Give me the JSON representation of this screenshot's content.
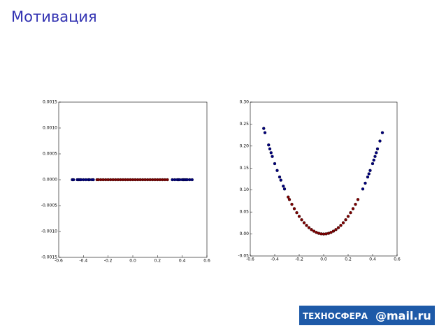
{
  "slide_title": "Мотивация",
  "logo": {
    "brand": "ТЕХНОСФЕРА",
    "partner": "@mail.ru"
  },
  "chart_data": [
    {
      "type": "scatter",
      "xlim": [
        -0.6,
        0.6
      ],
      "ylim": [
        -0.0015,
        0.0015
      ],
      "xticks": [
        {
          "value": -0.6,
          "label": "-0.6"
        },
        {
          "value": -0.4,
          "label": "-0.4"
        },
        {
          "value": -0.2,
          "label": "-0.2"
        },
        {
          "value": 0,
          "label": "0.0"
        },
        {
          "value": 0.2,
          "label": "0.2"
        },
        {
          "value": 0.4,
          "label": "0.4"
        },
        {
          "value": 0.6,
          "label": "0.6"
        }
      ],
      "yticks": [
        {
          "value": -0.0015,
          "label": "-0.0015"
        },
        {
          "value": -0.001,
          "label": "-0.0010"
        },
        {
          "value": -0.0005,
          "label": "-0.0005"
        },
        {
          "value": 0,
          "label": "0.0000"
        },
        {
          "value": 0.0005,
          "label": "0.0005"
        },
        {
          "value": 0.001,
          "label": "0.0010"
        },
        {
          "value": 0.0015,
          "label": "0.0015"
        }
      ],
      "series": [
        {
          "color": "#00007f",
          "x": [
            -0.49,
            -0.48,
            -0.45,
            -0.44,
            -0.43,
            -0.42,
            -0.4,
            -0.38,
            -0.36,
            -0.35,
            -0.33,
            -0.32,
            0.32,
            0.34,
            0.36,
            0.37,
            0.38,
            0.4,
            0.41,
            0.42,
            0.43,
            0.44,
            0.46,
            0.48
          ],
          "values": [
            0,
            0,
            0,
            0,
            0,
            0,
            0,
            0,
            0,
            0,
            0,
            0,
            0,
            0,
            0,
            0,
            0,
            0,
            0,
            0,
            0,
            0,
            0,
            0
          ]
        },
        {
          "color": "#7f0000",
          "x": [
            -0.29,
            -0.28,
            -0.26,
            -0.24,
            -0.22,
            -0.2,
            -0.18,
            -0.16,
            -0.14,
            -0.12,
            -0.1,
            -0.08,
            -0.06,
            -0.04,
            -0.02,
            0.0,
            0.02,
            0.04,
            0.06,
            0.08,
            0.1,
            0.12,
            0.14,
            0.16,
            0.18,
            0.2,
            0.22,
            0.24,
            0.26,
            0.28
          ],
          "values": [
            0,
            0,
            0,
            0,
            0,
            0,
            0,
            0,
            0,
            0,
            0,
            0,
            0,
            0,
            0,
            0,
            0,
            0,
            0,
            0,
            0,
            0,
            0,
            0,
            0,
            0,
            0,
            0,
            0,
            0
          ]
        }
      ]
    },
    {
      "type": "scatter",
      "xlim": [
        -0.6,
        0.6
      ],
      "ylim": [
        -0.05,
        0.3
      ],
      "xticks": [
        {
          "value": -0.6,
          "label": "-0.6"
        },
        {
          "value": -0.4,
          "label": "-0.4"
        },
        {
          "value": -0.2,
          "label": "-0.2"
        },
        {
          "value": 0,
          "label": "0.0"
        },
        {
          "value": 0.2,
          "label": "0.2"
        },
        {
          "value": 0.4,
          "label": "0.4"
        },
        {
          "value": 0.6,
          "label": "0.6"
        }
      ],
      "yticks": [
        {
          "value": -0.05,
          "label": "-0.05"
        },
        {
          "value": 0,
          "label": "0.00"
        },
        {
          "value": 0.05,
          "label": "0.05"
        },
        {
          "value": 0.1,
          "label": "0.10"
        },
        {
          "value": 0.15,
          "label": "0.15"
        },
        {
          "value": 0.2,
          "label": "0.20"
        },
        {
          "value": 0.25,
          "label": "0.25"
        },
        {
          "value": 0.3,
          "label": "0.30"
        }
      ],
      "series": [
        {
          "color": "#00007f",
          "x": [
            -0.49,
            -0.48,
            -0.45,
            -0.44,
            -0.43,
            -0.42,
            -0.4,
            -0.38,
            -0.36,
            -0.35,
            -0.33,
            -0.32,
            0.32,
            0.34,
            0.36,
            0.37,
            0.38,
            0.4,
            0.41,
            0.42,
            0.43,
            0.44,
            0.46,
            0.48
          ],
          "values": [
            0.2401,
            0.2304,
            0.2025,
            0.1936,
            0.1849,
            0.1764,
            0.16,
            0.1444,
            0.1296,
            0.1225,
            0.1089,
            0.1024,
            0.1024,
            0.1156,
            0.1296,
            0.1369,
            0.1444,
            0.16,
            0.1681,
            0.1764,
            0.1849,
            0.1936,
            0.2116,
            0.2304
          ]
        },
        {
          "color": "#7f0000",
          "x": [
            -0.29,
            -0.28,
            -0.26,
            -0.24,
            -0.22,
            -0.2,
            -0.18,
            -0.16,
            -0.14,
            -0.12,
            -0.1,
            -0.08,
            -0.06,
            -0.04,
            -0.02,
            0.0,
            0.02,
            0.04,
            0.06,
            0.08,
            0.1,
            0.12,
            0.14,
            0.16,
            0.18,
            0.2,
            0.22,
            0.24,
            0.26,
            0.28
          ],
          "values": [
            0.0841,
            0.0784,
            0.0676,
            0.0576,
            0.0484,
            0.04,
            0.0324,
            0.0256,
            0.0196,
            0.0144,
            0.01,
            0.0064,
            0.0036,
            0.0016,
            0.0004,
            0,
            0.0004,
            0.0016,
            0.0036,
            0.0064,
            0.01,
            0.0144,
            0.0196,
            0.0256,
            0.0324,
            0.04,
            0.0484,
            0.0576,
            0.0676,
            0.0784
          ]
        }
      ]
    }
  ]
}
